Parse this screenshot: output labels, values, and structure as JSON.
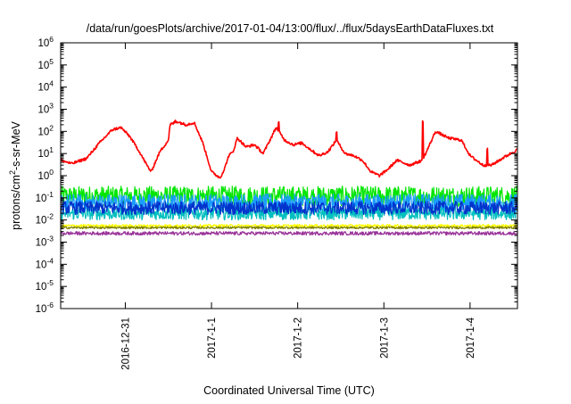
{
  "chart_data": {
    "type": "line",
    "title": "/data/run/goesPlots/archive/2017-01-04/13:00/flux/../flux/5daysEarthDataFluxes.txt",
    "xlabel": "Coordinated Universal Time (UTC)",
    "ylabel": {
      "base": "protons/cm",
      "sup": "2",
      "rest": "-s-sr-MeV"
    },
    "yscale": "log",
    "ylim": [
      1e-06,
      1000000.0
    ],
    "xlim": [
      -1.75,
      3.55
    ],
    "x_unit": "days from 2017-01-01 00:00 UTC",
    "grid": false,
    "legend": "none",
    "y_ticks": [
      {
        "value": 1e-06,
        "base": "10",
        "exp": "-6"
      },
      {
        "value": 1e-05,
        "base": "10",
        "exp": "-5"
      },
      {
        "value": 0.0001,
        "base": "10",
        "exp": "-4"
      },
      {
        "value": 0.001,
        "base": "10",
        "exp": "-3"
      },
      {
        "value": 0.01,
        "base": "10",
        "exp": "-2"
      },
      {
        "value": 0.1,
        "base": "10",
        "exp": "-1"
      },
      {
        "value": 1,
        "base": "10",
        "exp": "0"
      },
      {
        "value": 10.0,
        "base": "10",
        "exp": "1"
      },
      {
        "value": 100.0,
        "base": "10",
        "exp": "2"
      },
      {
        "value": 1000.0,
        "base": "10",
        "exp": "3"
      },
      {
        "value": 10000.0,
        "base": "10",
        "exp": "4"
      },
      {
        "value": 100000.0,
        "base": "10",
        "exp": "5"
      },
      {
        "value": 1000000.0,
        "base": "10",
        "exp": "6"
      }
    ],
    "x_ticks": [
      {
        "value": -1,
        "label": "2016-12-31"
      },
      {
        "value": 0,
        "label": "2017-1-1"
      },
      {
        "value": 1,
        "label": "2017-1-2"
      },
      {
        "value": 2,
        "label": "2017-1-3"
      },
      {
        "value": 3,
        "label": "2017-1-4"
      }
    ],
    "series": [
      {
        "color": "#ff0000",
        "noise": 0.06,
        "points": [
          [
            -1.75,
            5
          ],
          [
            -1.62,
            3.5
          ],
          [
            -1.45,
            6
          ],
          [
            -1.3,
            30
          ],
          [
            -1.15,
            120
          ],
          [
            -1.05,
            150
          ],
          [
            -0.95,
            60
          ],
          [
            -0.85,
            15
          ],
          [
            -0.75,
            3
          ],
          [
            -0.7,
            1.5
          ],
          [
            -0.6,
            12
          ],
          [
            -0.5,
            40
          ],
          [
            -0.48,
            200
          ],
          [
            -0.4,
            280
          ],
          [
            -0.3,
            200
          ],
          [
            -0.2,
            250
          ],
          [
            -0.1,
            30
          ],
          [
            0.0,
            1.5
          ],
          [
            0.1,
            0.8
          ],
          [
            0.15,
            2
          ],
          [
            0.2,
            8
          ],
          [
            0.25,
            12
          ],
          [
            0.3,
            50
          ],
          [
            0.4,
            20
          ],
          [
            0.5,
            25
          ],
          [
            0.6,
            10
          ],
          [
            0.7,
            60
          ],
          [
            0.75,
            150
          ],
          [
            0.85,
            40
          ],
          [
            0.95,
            25
          ],
          [
            1.05,
            30
          ],
          [
            1.15,
            15
          ],
          [
            1.25,
            8
          ],
          [
            1.35,
            12
          ],
          [
            1.45,
            40
          ],
          [
            1.55,
            10
          ],
          [
            1.65,
            8
          ],
          [
            1.75,
            5
          ],
          [
            1.85,
            1.5
          ],
          [
            1.95,
            1
          ],
          [
            2.05,
            2
          ],
          [
            2.15,
            5
          ],
          [
            2.3,
            3
          ],
          [
            2.45,
            5
          ],
          [
            2.6,
            100
          ],
          [
            2.75,
            50
          ],
          [
            2.9,
            40
          ],
          [
            3.0,
            8
          ],
          [
            3.15,
            3
          ],
          [
            3.25,
            3
          ],
          [
            3.4,
            7
          ],
          [
            3.55,
            15
          ]
        ],
        "spikes": [
          [
            -0.42,
            300
          ],
          [
            0.78,
            250
          ],
          [
            1.45,
            100
          ],
          [
            2.45,
            300
          ],
          [
            3.2,
            15
          ]
        ]
      },
      {
        "color": "#00e600",
        "level": 0.12,
        "noise": 0.45,
        "points": []
      },
      {
        "color": "#1a9cff",
        "level": 0.06,
        "noise": 0.4,
        "points": []
      },
      {
        "color": "#00bfbf",
        "level": 0.02,
        "noise": 0.3,
        "points": []
      },
      {
        "color": "#0033cc",
        "level": 0.035,
        "noise": 0.3,
        "points": []
      },
      {
        "color": "#ffff00",
        "level": 0.0055,
        "noise": 0.06,
        "points": []
      },
      {
        "color": "#808000",
        "level": 0.0045,
        "noise": 0.05,
        "points": []
      },
      {
        "color": "#993399",
        "level": 0.0025,
        "noise": 0.08,
        "points": []
      }
    ]
  }
}
